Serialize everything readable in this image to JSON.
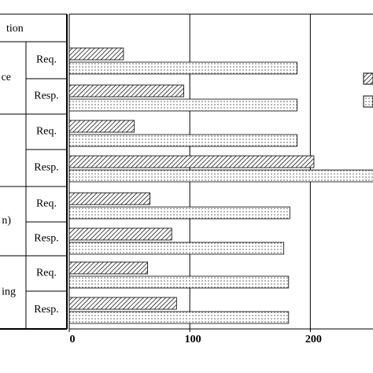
{
  "chart_data": {
    "type": "bar",
    "orientation": "horizontal",
    "header": "tion",
    "group_labels": [
      "ce",
      null,
      "n)",
      "ing"
    ],
    "categories": [
      "Req.",
      "Resp.",
      "Req.",
      "Resp.",
      "Req.",
      "Resp.",
      "Req.",
      "Resp."
    ],
    "series": [
      {
        "color": "#000000",
        "pattern": "hatch",
        "values": [
          45,
          95,
          54,
          203,
          67,
          85,
          65,
          89
        ]
      },
      {
        "color": "#000000",
        "pattern": "dots",
        "values": [
          189,
          189,
          189,
          255,
          183,
          178,
          182,
          182
        ]
      }
    ],
    "xlim": [
      0,
      252
    ],
    "xticks": [
      0,
      100,
      200
    ],
    "grid": true
  }
}
